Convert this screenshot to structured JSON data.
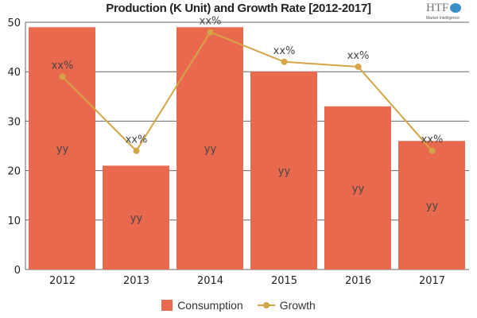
{
  "chart_data": {
    "type": "bar",
    "title": "Production (K Unit) and Growth Rate [2012-2017]",
    "categories": [
      "2012",
      "2013",
      "2014",
      "2015",
      "2016",
      "2017"
    ],
    "ylim": [
      0,
      50
    ],
    "yticks": [
      0,
      10,
      20,
      30,
      40,
      50
    ],
    "grid": true,
    "legend": "bottom",
    "series": [
      {
        "name": "Consumption",
        "type": "bar",
        "color": "#e8694e",
        "values": [
          49,
          21,
          49,
          40,
          33,
          26
        ],
        "data_labels": [
          "yy",
          "yy",
          "yy",
          "yy",
          "yy",
          "yy"
        ]
      },
      {
        "name": "Growth",
        "type": "line",
        "color": "#d4a445",
        "values": [
          39,
          24,
          48,
          42,
          41,
          24
        ],
        "data_labels": [
          "xx%",
          "xx%",
          "xx%",
          "xx%",
          "xx%",
          "xx%"
        ]
      }
    ]
  },
  "logo": {
    "text": "HTF",
    "subtext": "Market Intelligence"
  }
}
